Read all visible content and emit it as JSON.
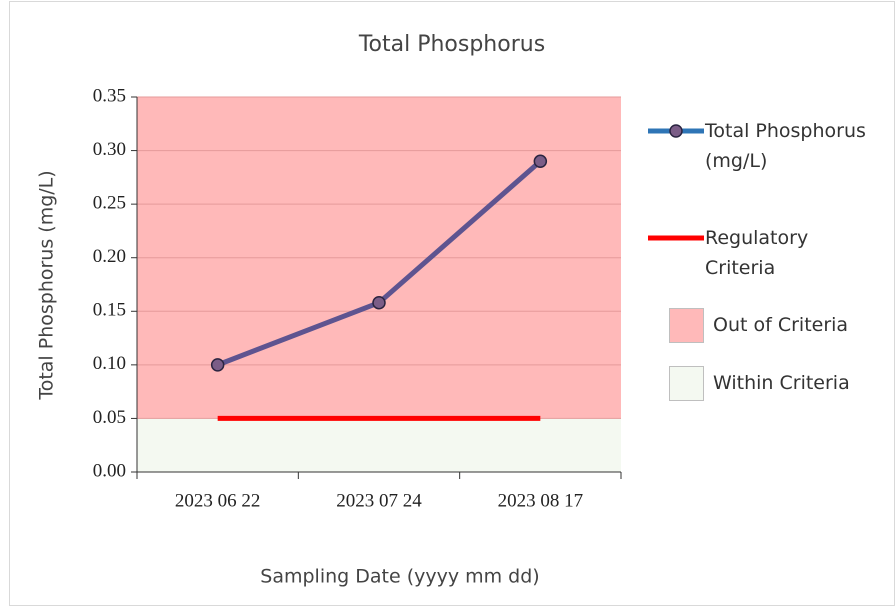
{
  "chart_data": {
    "type": "line",
    "title": "Total Phosphorus",
    "x_label": "Sampling Date (yyyy mm dd)",
    "y_label": "Total Phosphorus (mg/L)",
    "categories": [
      "2023 06 22",
      "2023 07 24",
      "2023 08 17"
    ],
    "series": [
      {
        "name": "Total Phosphorus (mg/L)",
        "color": "#5e5490",
        "marker_color": "#7b5d87",
        "legend_color": "#2e75b6",
        "values": [
          0.1,
          0.158,
          0.29
        ]
      },
      {
        "name": "Regulatory Criteria",
        "color": "#ff0000",
        "values": [
          0.05,
          0.05,
          0.05
        ]
      }
    ],
    "regions": [
      {
        "name": "Out of Criteria",
        "color": "#ffb9b9",
        "range": [
          0.05,
          0.35
        ]
      },
      {
        "name": "Within Criteria",
        "color": "#f4f9f1",
        "range": [
          0,
          0.05
        ]
      }
    ],
    "ylim": [
      0,
      0.35
    ],
    "yticks": [
      {
        "value": 0,
        "label": "0.00"
      },
      {
        "value": 0.05,
        "label": "0.05"
      },
      {
        "value": 0.1,
        "label": "0.10"
      },
      {
        "value": 0.15,
        "label": "0.15"
      },
      {
        "value": 0.2,
        "label": "0.20"
      },
      {
        "value": 0.25,
        "label": "0.25"
      },
      {
        "value": 0.3,
        "label": "0.30"
      },
      {
        "value": 0.35,
        "label": "0.35"
      }
    ],
    "grid": true,
    "legend": "right"
  }
}
